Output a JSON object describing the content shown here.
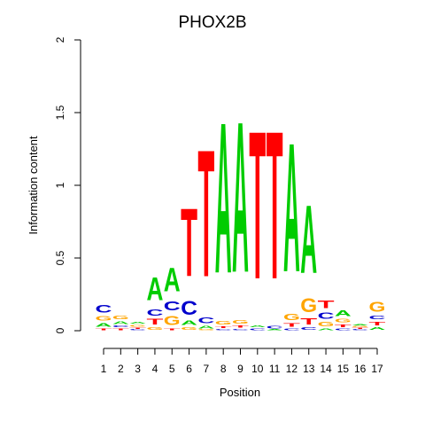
{
  "chart_data": {
    "type": "sequence-logo",
    "title": "PHOX2B",
    "xlabel": "Position",
    "ylabel": "Information content",
    "ylim": [
      0,
      2
    ],
    "yticks": [
      0,
      0.5,
      1,
      1.5,
      2
    ],
    "positions": [
      1,
      2,
      3,
      4,
      5,
      6,
      7,
      8,
      9,
      10,
      11,
      12,
      13,
      14,
      15,
      16,
      17
    ],
    "colors": {
      "A": "#00cc00",
      "C": "#0000cc",
      "G": "#ffa500",
      "T": "#ff0000"
    },
    "columns": [
      [
        {
          "b": "T",
          "h": 0.02
        },
        {
          "b": "A",
          "h": 0.04
        },
        {
          "b": "G",
          "h": 0.05
        },
        {
          "b": "C",
          "h": 0.08
        }
      ],
      [
        {
          "b": "T",
          "h": 0.02
        },
        {
          "b": "C",
          "h": 0.02
        },
        {
          "b": "A",
          "h": 0.03
        },
        {
          "b": "G",
          "h": 0.04
        }
      ],
      [
        {
          "b": "C",
          "h": 0.01
        },
        {
          "b": "T",
          "h": 0.015
        },
        {
          "b": "G",
          "h": 0.02
        },
        {
          "b": "A",
          "h": 0.02
        }
      ],
      [
        {
          "b": "G",
          "h": 0.03
        },
        {
          "b": "T",
          "h": 0.06
        },
        {
          "b": "C",
          "h": 0.07
        },
        {
          "b": "A",
          "h": 0.25
        }
      ],
      [
        {
          "b": "T",
          "h": 0.02
        },
        {
          "b": "G",
          "h": 0.1
        },
        {
          "b": "C",
          "h": 0.1
        },
        {
          "b": "A",
          "h": 0.26
        }
      ],
      [
        {
          "b": "G",
          "h": 0.03
        },
        {
          "b": "A",
          "h": 0.05
        },
        {
          "b": "C",
          "h": 0.15
        },
        {
          "b": "T",
          "h": 0.75
        }
      ],
      [
        {
          "b": "G",
          "h": 0.01
        },
        {
          "b": "A",
          "h": 0.03
        },
        {
          "b": "C",
          "h": 0.06
        },
        {
          "b": "T",
          "h": 1.4
        }
      ],
      [
        {
          "b": "C",
          "h": 0.015
        },
        {
          "b": "T",
          "h": 0.02
        },
        {
          "b": "G",
          "h": 0.04
        },
        {
          "b": "A",
          "h": 1.66
        }
      ],
      [
        {
          "b": "C",
          "h": 0.015
        },
        {
          "b": "T",
          "h": 0.025
        },
        {
          "b": "G",
          "h": 0.04
        },
        {
          "b": "A",
          "h": 1.66
        }
      ],
      [
        {
          "b": "C",
          "h": 0.02
        },
        {
          "b": "A",
          "h": 0.02
        },
        {
          "b": "T",
          "h": 1.63
        }
      ],
      [
        {
          "b": "A",
          "h": 0.01
        },
        {
          "b": "C",
          "h": 0.03
        },
        {
          "b": "T",
          "h": 1.63
        }
      ],
      [
        {
          "b": "C",
          "h": 0.02
        },
        {
          "b": "T",
          "h": 0.04
        },
        {
          "b": "G",
          "h": 0.07
        },
        {
          "b": "A",
          "h": 1.42
        }
      ],
      [
        {
          "b": "C",
          "h": 0.03
        },
        {
          "b": "T",
          "h": 0.07
        },
        {
          "b": "G",
          "h": 0.15
        },
        {
          "b": "A",
          "h": 0.75
        }
      ],
      [
        {
          "b": "A",
          "h": 0.02
        },
        {
          "b": "G",
          "h": 0.05
        },
        {
          "b": "C",
          "h": 0.07
        },
        {
          "b": "T",
          "h": 0.08
        }
      ],
      [
        {
          "b": "C",
          "h": 0.02
        },
        {
          "b": "T",
          "h": 0.03
        },
        {
          "b": "G",
          "h": 0.04
        },
        {
          "b": "A",
          "h": 0.06
        }
      ],
      [
        {
          "b": "C",
          "h": 0.01
        },
        {
          "b": "T",
          "h": 0.01
        },
        {
          "b": "G",
          "h": 0.015
        },
        {
          "b": "A",
          "h": 0.015
        }
      ],
      [
        {
          "b": "A",
          "h": 0.03
        },
        {
          "b": "T",
          "h": 0.04
        },
        {
          "b": "C",
          "h": 0.04
        },
        {
          "b": "G",
          "h": 0.11
        }
      ]
    ]
  }
}
